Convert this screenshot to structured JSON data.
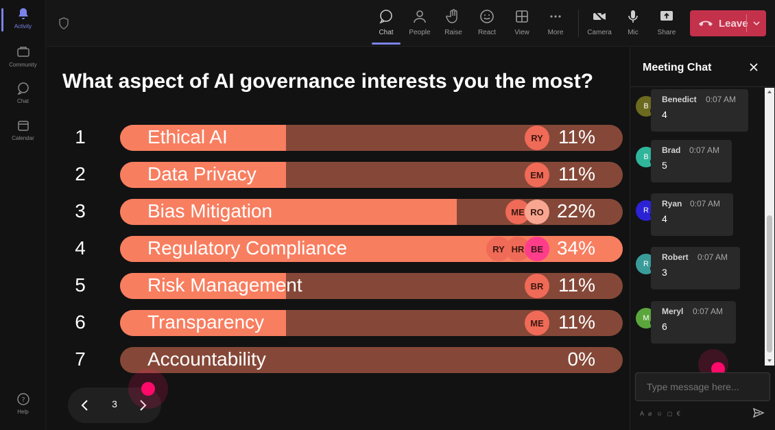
{
  "rail": {
    "items": [
      {
        "label": "Activity",
        "icon": "bell-icon"
      },
      {
        "label": "Community",
        "icon": "community-icon"
      },
      {
        "label": "Chat",
        "icon": "chat-icon"
      },
      {
        "label": "Calendar",
        "icon": "calendar-icon"
      }
    ],
    "help": "Help"
  },
  "toolbar": {
    "chat": "Chat",
    "people": "People",
    "raise": "Raise",
    "react": "React",
    "view": "View",
    "more": "More",
    "camera": "Camera",
    "mic": "Mic",
    "share": "Share",
    "leave": "Leave"
  },
  "poll": {
    "question": "What aspect of AI governance interests you the most?",
    "options": [
      {
        "num": "1",
        "label": "Ethical AI",
        "pct": "11%",
        "fill": 0.33,
        "avatars": [
          "RY"
        ]
      },
      {
        "num": "2",
        "label": "Data Privacy",
        "pct": "11%",
        "fill": 0.33,
        "avatars": [
          "EM"
        ]
      },
      {
        "num": "3",
        "label": "Bias Mitigation",
        "pct": "22%",
        "fill": 0.67,
        "avatars": [
          "ME",
          "RO"
        ]
      },
      {
        "num": "4",
        "label": "Regulatory Compliance",
        "pct": "34%",
        "fill": 1.0,
        "avatars": [
          "RY",
          "HR",
          "BE"
        ]
      },
      {
        "num": "5",
        "label": "Risk Management",
        "pct": "11%",
        "fill": 0.33,
        "avatars": [
          "BR"
        ]
      },
      {
        "num": "6",
        "label": "Transparency",
        "pct": "11%",
        "fill": 0.33,
        "avatars": [
          "ME"
        ]
      },
      {
        "num": "7",
        "label": "Accountability",
        "pct": "0%",
        "fill": 0.0,
        "avatars": []
      }
    ],
    "page": "3"
  },
  "chat": {
    "title": "Meeting Chat",
    "messages": [
      {
        "initial": "B",
        "name": "Benedict",
        "time": "0:07 AM",
        "text": "4",
        "color": "#6b6a1f"
      },
      {
        "initial": "B",
        "name": "Brad",
        "time": "0:07 AM",
        "text": "5",
        "color": "#2fb59a"
      },
      {
        "initial": "R",
        "name": "Ryan",
        "time": "0:07 AM",
        "text": "4",
        "color": "#2b22d6"
      },
      {
        "initial": "R",
        "name": "Robert",
        "time": "0:07 AM",
        "text": "3",
        "color": "#3a9c9a"
      },
      {
        "initial": "M",
        "name": "Meryl",
        "time": "0:07 AM",
        "text": "6",
        "color": "#5aa63c"
      }
    ],
    "placeholder": "Type message here..."
  },
  "colors": {
    "accent": "#7b83eb",
    "leave": "#c4314b",
    "bar_fill": "#f87e60",
    "bar_track": "#854838",
    "cursor": "#ff0a6a"
  }
}
